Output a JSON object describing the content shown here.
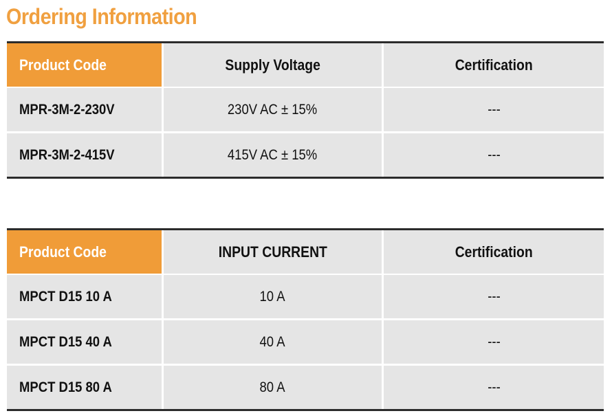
{
  "title": "Ordering Information",
  "colors": {
    "accent": "#f09c38",
    "title": "#f0a040",
    "cell_background": "#e5e5e5",
    "rule": "#2b2b2b"
  },
  "tables": [
    {
      "headers": [
        "Product Code",
        "Supply Voltage",
        "Certification"
      ],
      "rows": [
        [
          "MPR-3M-2-230V",
          "230V AC ± 15%",
          "---"
        ],
        [
          "MPR-3M-2-415V",
          "415V AC ± 15%",
          "---"
        ]
      ]
    },
    {
      "headers": [
        "Product Code",
        "INPUT CURRENT",
        "Certification"
      ],
      "rows": [
        [
          "MPCT D15 10 A",
          "10 A",
          "---"
        ],
        [
          "MPCT D15 40 A",
          "40 A",
          "---"
        ],
        [
          "MPCT D15 80 A",
          "80 A",
          "---"
        ]
      ]
    }
  ]
}
